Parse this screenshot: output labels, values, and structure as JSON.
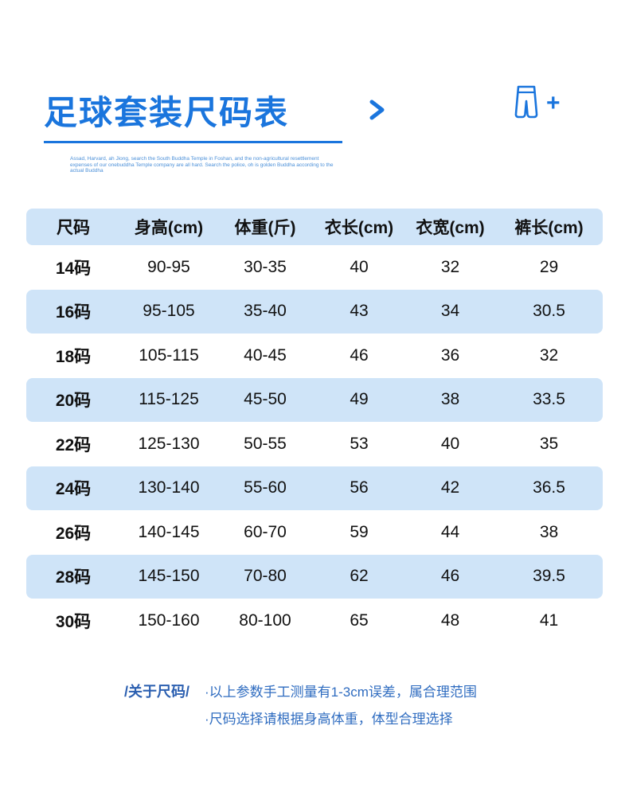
{
  "header": {
    "title": "足球套装尺码表",
    "plus_sign": "+",
    "fine_print": "Assad, Harvard, ah Jiong, search the South Buddha Temple in Foshan, and the non-agricultural resettlement expenses of our onebuddha Temple company are all hard. Search the police, oh is golden Buddha according to the actual Buddha"
  },
  "chart_data": {
    "type": "table",
    "title": "足球套装尺码表",
    "columns": [
      "尺码",
      "身高(cm)",
      "体重(斤)",
      "衣长(cm)",
      "衣宽(cm)",
      "裤长(cm)"
    ],
    "rows": [
      [
        "14码",
        "90-95",
        "30-35",
        "40",
        "32",
        "29"
      ],
      [
        "16码",
        "95-105",
        "35-40",
        "43",
        "34",
        "30.5"
      ],
      [
        "18码",
        "105-115",
        "40-45",
        "46",
        "36",
        "32"
      ],
      [
        "20码",
        "115-125",
        "45-50",
        "49",
        "38",
        "33.5"
      ],
      [
        "22码",
        "125-130",
        "50-55",
        "53",
        "40",
        "35"
      ],
      [
        "24码",
        "130-140",
        "55-60",
        "56",
        "42",
        "36.5"
      ],
      [
        "26码",
        "140-145",
        "60-70",
        "59",
        "44",
        "38"
      ],
      [
        "28码",
        "145-150",
        "70-80",
        "62",
        "46",
        "39.5"
      ],
      [
        "30码",
        "150-160",
        "80-100",
        "65",
        "48",
        "41"
      ]
    ]
  },
  "footer": {
    "label": "/关于尺码/",
    "notes": [
      "·以上参数手工测量有1-3cm误差，属合理范围",
      "·尺码选择请根据身高体重，体型合理选择"
    ]
  },
  "colors": {
    "accent": "#1a75dd",
    "row_highlight": "#cfe4f8",
    "note_text": "#2f6cc0",
    "body_text": "#111111"
  }
}
